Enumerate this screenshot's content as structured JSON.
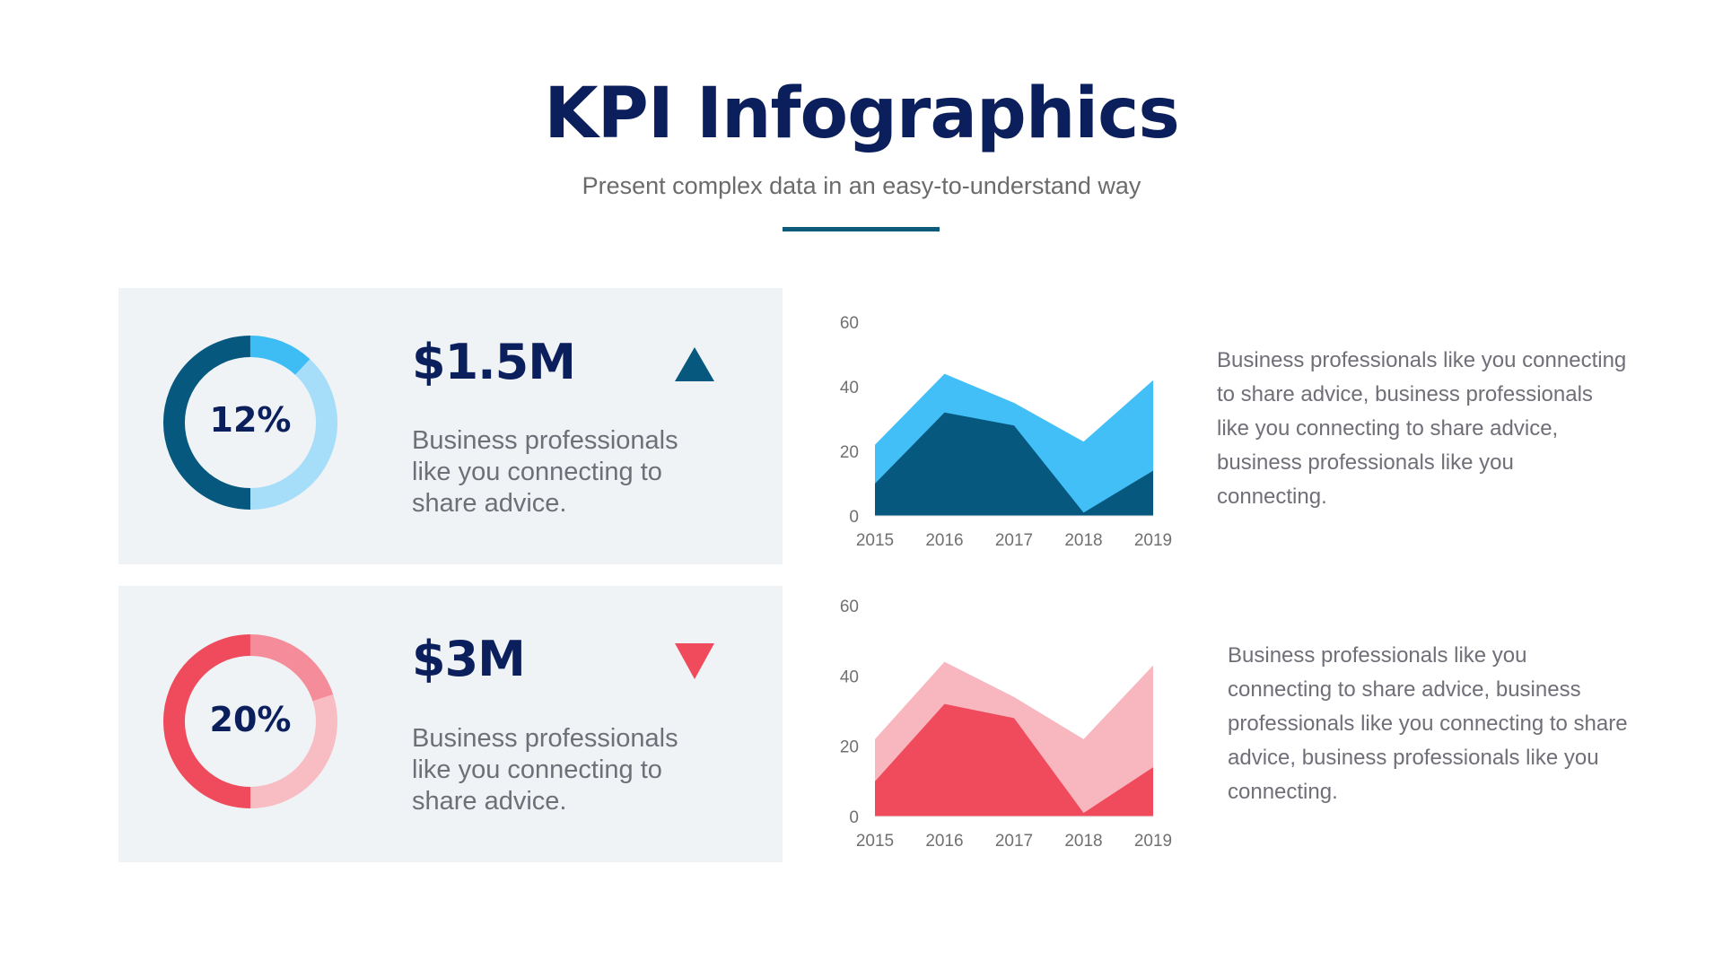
{
  "header": {
    "title": "KPI Infographics",
    "subtitle": "Present complex data in an easy-to-understand way",
    "accent": "#0e5a7a"
  },
  "cards": [
    {
      "percent_label": "12%",
      "percent": 12,
      "value": "$1.5M",
      "trend": "up",
      "trend_icon": "triangle-up-icon",
      "description": "Business professionals like you connecting to share advice.",
      "colors": {
        "dark": "#06587f",
        "bright": "#3ebcf4",
        "light": "#a6defa"
      }
    },
    {
      "percent_label": "20%",
      "percent": 20,
      "value": "$3M",
      "trend": "down",
      "trend_icon": "triangle-down-icon",
      "description": "Business professionals like you connecting to share advice.",
      "colors": {
        "dark": "#ef4b5c",
        "bright": "#f58c99",
        "light": "#f8bcc3"
      }
    }
  ],
  "paragraphs": [
    "Business professionals like you connecting to share advice, business professionals like you connecting to share advice, business professionals like you connecting.",
    "Business professionals like you connecting to share advice, business professionals like you connecting to share advice, business professionals like you connecting."
  ],
  "chart_data": [
    {
      "type": "area",
      "categories": [
        "2015",
        "2016",
        "2017",
        "2018",
        "2019"
      ],
      "ylim": [
        0,
        60
      ],
      "yticks": [
        0,
        20,
        40,
        60
      ],
      "grid": false,
      "series": [
        {
          "values": [
            22,
            44,
            35,
            23,
            42
          ],
          "color": "#42bff7"
        },
        {
          "values": [
            10,
            32,
            28,
            1,
            14
          ],
          "color": "#06587f"
        }
      ]
    },
    {
      "type": "area",
      "categories": [
        "2015",
        "2016",
        "2017",
        "2018",
        "2019"
      ],
      "ylim": [
        0,
        60
      ],
      "yticks": [
        0,
        20,
        40,
        60
      ],
      "grid": false,
      "series": [
        {
          "values": [
            22,
            44,
            34,
            22,
            43
          ],
          "color": "#f8b6be"
        },
        {
          "values": [
            10,
            32,
            28,
            1,
            14
          ],
          "color": "#ef4b5c"
        }
      ]
    }
  ]
}
